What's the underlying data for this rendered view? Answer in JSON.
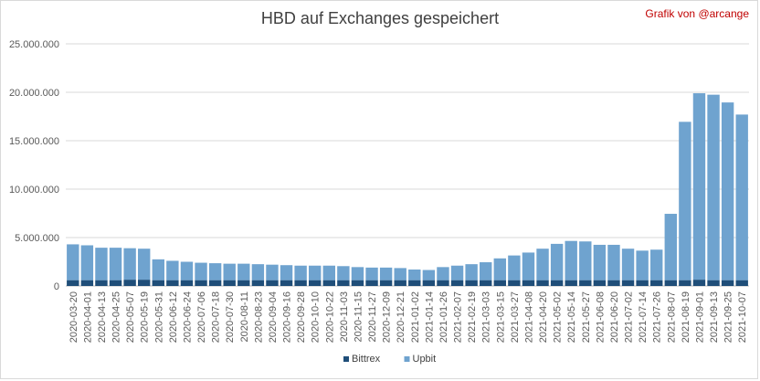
{
  "chart_data": {
    "type": "bar",
    "stacked": true,
    "title": "HBD auf Exchanges gespeichert",
    "credit": "Grafik von @arcange",
    "ylim": [
      0,
      25000000
    ],
    "yticks": [
      "0",
      "5.000.000",
      "10.000.000",
      "15.000.000",
      "20.000.000",
      "25.000.000"
    ],
    "ytick_values": [
      0,
      5000000,
      10000000,
      15000000,
      20000000,
      25000000
    ],
    "categories": [
      "2020-03-20",
      "2020-04-01",
      "2020-04-13",
      "2020-04-25",
      "2020-05-07",
      "2020-05-19",
      "2020-05-31",
      "2020-06-12",
      "2020-06-24",
      "2020-07-06",
      "2020-07-18",
      "2020-07-30",
      "2020-08-11",
      "2020-08-23",
      "2020-09-04",
      "2020-09-16",
      "2020-09-28",
      "2020-10-10",
      "2020-10-22",
      "2020-11-03",
      "2020-11-15",
      "2020-11-27",
      "2020-12-09",
      "2020-12-21",
      "2021-01-02",
      "2021-01-14",
      "2021-01-26",
      "2021-02-07",
      "2021-02-19",
      "2021-03-03",
      "2021-03-15",
      "2021-03-27",
      "2021-04-08",
      "2021-04-20",
      "2021-05-02",
      "2021-05-14",
      "2021-05-27",
      "2021-06-08",
      "2021-06-20",
      "2021-07-02",
      "2021-07-14",
      "2021-07-26",
      "2021-08-07",
      "2021-08-19",
      "2021-09-01",
      "2021-09-13",
      "2021-09-25",
      "2021-10-07"
    ],
    "series": [
      {
        "name": "Bittrex",
        "color": "#1f4e79",
        "values": [
          600000,
          600000,
          600000,
          600000,
          650000,
          650000,
          600000,
          600000,
          600000,
          600000,
          600000,
          600000,
          600000,
          600000,
          600000,
          600000,
          600000,
          600000,
          600000,
          600000,
          600000,
          600000,
          600000,
          600000,
          600000,
          600000,
          600000,
          600000,
          600000,
          600000,
          600000,
          600000,
          600000,
          600000,
          600000,
          600000,
          600000,
          600000,
          600000,
          600000,
          600000,
          600000,
          600000,
          600000,
          650000,
          600000,
          600000,
          600000
        ]
      },
      {
        "name": "Upbit",
        "color": "#6fa3cf",
        "values": [
          3700000,
          3600000,
          3350000,
          3350000,
          3250000,
          3200000,
          2150000,
          2000000,
          1900000,
          1800000,
          1750000,
          1700000,
          1700000,
          1650000,
          1600000,
          1550000,
          1500000,
          1500000,
          1500000,
          1450000,
          1350000,
          1300000,
          1300000,
          1250000,
          1100000,
          1050000,
          1350000,
          1500000,
          1650000,
          1850000,
          2250000,
          2550000,
          2850000,
          3250000,
          3750000,
          4050000,
          4000000,
          3650000,
          3650000,
          3250000,
          3050000,
          3150000,
          6850000,
          16350000,
          19250000,
          19150000,
          18350000,
          17100000
        ]
      }
    ],
    "legend_position": "bottom",
    "grid": true
  }
}
